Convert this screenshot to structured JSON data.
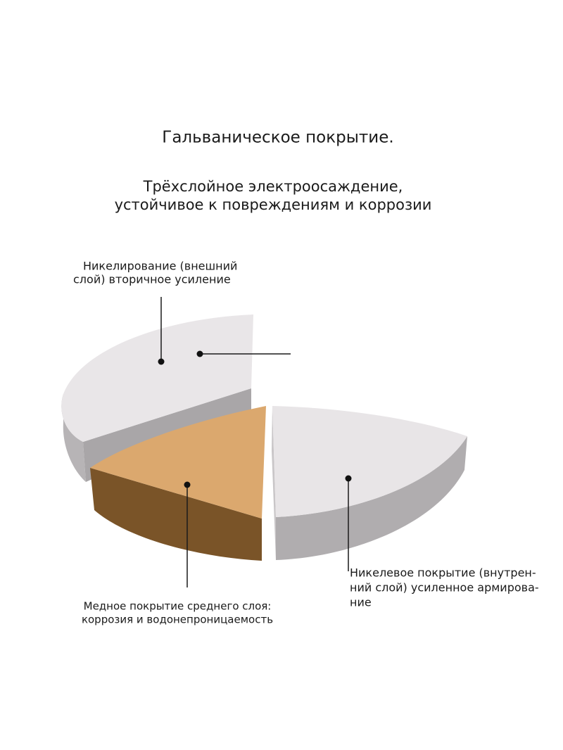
{
  "header": {
    "title": "Гальваническое покрытие.",
    "subtitle": [
      "Трёхслойное электроосаждение,",
      "устойчивое к повреждениям и коррозии"
    ]
  },
  "labels": [
    {
      "lines": [
        "Никелирование (внешний",
        "слой) вторичное усиление"
      ]
    },
    {
      "lines": [
        "Медное покрытие среднего слоя:",
        "коррозия и водонепроницаемость"
      ]
    },
    {
      "lines": [
        "Никелевое покрытие (внутрен-",
        "ний слой) усиленное армирова-",
        "ние"
      ]
    }
  ]
}
